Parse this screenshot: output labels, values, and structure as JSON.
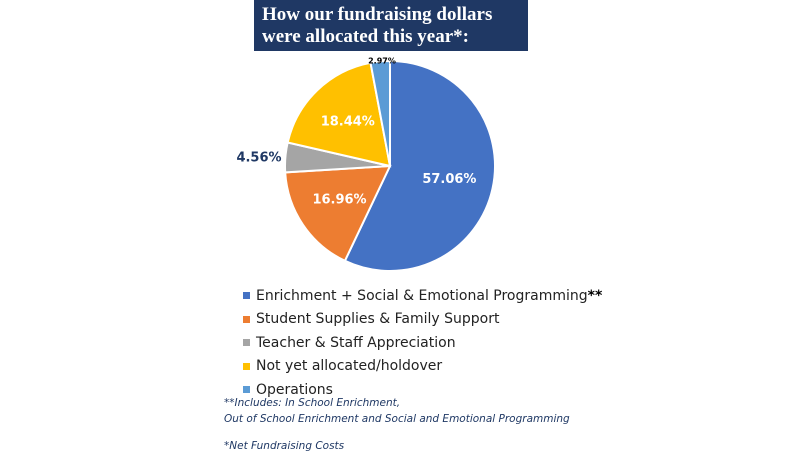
{
  "title": {
    "line1": "How our fundraising dollars",
    "line2": "were allocated this year*:"
  },
  "chart_data": {
    "type": "pie",
    "slices": [
      {
        "label": "Enrichment + Social & Emotional Programming",
        "marker": "**",
        "value": 57.06,
        "display": "57.06%",
        "color": "#4472c4",
        "label_color": "#ffffff",
        "label_outside": false
      },
      {
        "label": "Student Supplies & Family Support",
        "marker": "",
        "value": 16.96,
        "display": "16.96%",
        "color": "#ed7d31",
        "label_color": "#ffffff",
        "label_outside": false
      },
      {
        "label": "Teacher & Staff Appreciation",
        "marker": "",
        "value": 4.56,
        "display": "4.56%",
        "color": "#a5a5a5",
        "label_color": "#1f3864",
        "label_outside": true
      },
      {
        "label": "Not yet allocated/holdover",
        "marker": "",
        "value": 18.44,
        "display": "18.44%",
        "color": "#ffc000",
        "label_color": "#ffffff",
        "label_outside": false
      },
      {
        "label": "Operations",
        "marker": "",
        "value": 2.97,
        "display": "2.97%",
        "color": "#5b9bd5",
        "label_color": "#000000",
        "label_outside": true
      }
    ],
    "legend_position": "bottom"
  },
  "footnotes": {
    "includes_line1": "**Includes: In School Enrichment,",
    "includes_line2": "Out of School Enrichment and Social and Emotional Programming",
    "net_costs": "*Net Fundraising Costs"
  }
}
